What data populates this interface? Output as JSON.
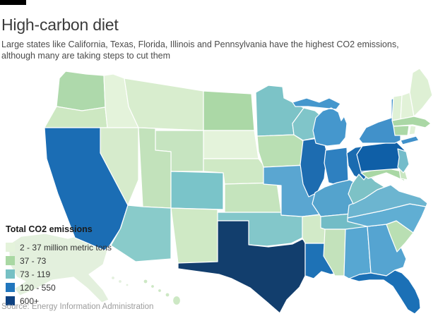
{
  "page": {
    "title": "High-carbon diet",
    "subtitle": "Large states like California, Texas, Florida, Illinois and Pennsylvania have the highest CO2 emissions, although many are taking steps to cut them",
    "source": "Source: Energy Information Administration",
    "kicker_bar_color": "#000000"
  },
  "legend": {
    "title": "Total CO2 emissions",
    "items": [
      {
        "label": "2 - 37 million metric tons",
        "color": "#e4f3db"
      },
      {
        "label": "37 - 73",
        "color": "#a9d8a3"
      },
      {
        "label": "73 - 119",
        "color": "#76c0c4"
      },
      {
        "label": "120 - 550",
        "color": "#2176bd"
      },
      {
        "label": "600+",
        "color": "#0d4181"
      }
    ]
  },
  "chart_data": {
    "type": "heatmap",
    "subtype": "us-state-choropleth",
    "title": "Total CO2 emissions",
    "unit": "million metric tons",
    "legend_position": "bottom-left",
    "buckets": [
      "2 - 37",
      "37 - 73",
      "73 - 119",
      "120 - 550",
      "600+"
    ],
    "states": [
      {
        "abbr": "WA",
        "name": "Washington",
        "bucket": "37 - 73",
        "fill": "#aed9ab"
      },
      {
        "abbr": "OR",
        "name": "Oregon",
        "bucket": "37 - 73",
        "fill": "#cde8c2"
      },
      {
        "abbr": "CA",
        "name": "California",
        "bucket": "120 - 550",
        "fill": "#1b6db4"
      },
      {
        "abbr": "NV",
        "name": "Nevada",
        "bucket": "2 - 37",
        "fill": "#d6ebcc"
      },
      {
        "abbr": "ID",
        "name": "Idaho",
        "bucket": "2 - 37",
        "fill": "#e4f3db"
      },
      {
        "abbr": "MT",
        "name": "Montana",
        "bucket": "2 - 37",
        "fill": "#d8edce"
      },
      {
        "abbr": "WY",
        "name": "Wyoming",
        "bucket": "37 - 73",
        "fill": "#c6e4c0"
      },
      {
        "abbr": "UT",
        "name": "Utah",
        "bucket": "37 - 73",
        "fill": "#c2e2bb"
      },
      {
        "abbr": "CO",
        "name": "Colorado",
        "bucket": "73 - 119",
        "fill": "#7ac4c9"
      },
      {
        "abbr": "AZ",
        "name": "Arizona",
        "bucket": "73 - 119",
        "fill": "#89cbca"
      },
      {
        "abbr": "NM",
        "name": "New Mexico",
        "bucket": "37 - 73",
        "fill": "#cfe9c5"
      },
      {
        "abbr": "ND",
        "name": "North Dakota",
        "bucket": "37 - 73",
        "fill": "#abd8a6"
      },
      {
        "abbr": "SD",
        "name": "South Dakota",
        "bucket": "2 - 37",
        "fill": "#e4f3db"
      },
      {
        "abbr": "NE",
        "name": "Nebraska",
        "bucket": "37 - 73",
        "fill": "#cfe9c5"
      },
      {
        "abbr": "KS",
        "name": "Kansas",
        "bucket": "37 - 73",
        "fill": "#c5e4bd"
      },
      {
        "abbr": "OK",
        "name": "Oklahoma",
        "bucket": "73 - 119",
        "fill": "#83c7ca"
      },
      {
        "abbr": "TX",
        "name": "Texas",
        "bucket": "600+",
        "fill": "#123e6d"
      },
      {
        "abbr": "MN",
        "name": "Minnesota",
        "bucket": "73 - 119",
        "fill": "#7cc3c7"
      },
      {
        "abbr": "IA",
        "name": "Iowa",
        "bucket": "37 - 73",
        "fill": "#b9dfb3"
      },
      {
        "abbr": "MO",
        "name": "Missouri",
        "bucket": "120 - 550",
        "fill": "#5aa6d1"
      },
      {
        "abbr": "AR",
        "name": "Arkansas",
        "bucket": "37 - 73",
        "fill": "#d2eac8"
      },
      {
        "abbr": "LA",
        "name": "Louisiana",
        "bucket": "120 - 550",
        "fill": "#1e72b6"
      },
      {
        "abbr": "WI",
        "name": "Wisconsin",
        "bucket": "73 - 119",
        "fill": "#80c5c9"
      },
      {
        "abbr": "MI",
        "name": "Michigan",
        "bucket": "120 - 550",
        "fill": "#4597cd"
      },
      {
        "abbr": "IL",
        "name": "Illinois",
        "bucket": "120 - 550",
        "fill": "#1d6cb0"
      },
      {
        "abbr": "IN",
        "name": "Indiana",
        "bucket": "120 - 550",
        "fill": "#2e80c0"
      },
      {
        "abbr": "OH",
        "name": "Ohio",
        "bucket": "120 - 550",
        "fill": "#1a6bb0"
      },
      {
        "abbr": "KY",
        "name": "Kentucky",
        "bucket": "73 - 119",
        "fill": "#54a3cd"
      },
      {
        "abbr": "TN",
        "name": "Tennessee",
        "bucket": "73 - 119",
        "fill": "#72bcc6"
      },
      {
        "abbr": "MS",
        "name": "Mississippi",
        "bucket": "37 - 73",
        "fill": "#c3e2bb"
      },
      {
        "abbr": "AL",
        "name": "Alabama",
        "bucket": "120 - 550",
        "fill": "#57a7d2"
      },
      {
        "abbr": "GA",
        "name": "Georgia",
        "bucket": "120 - 550",
        "fill": "#55a4d1"
      },
      {
        "abbr": "FL",
        "name": "Florida",
        "bucket": "120 - 550",
        "fill": "#1b70b6"
      },
      {
        "abbr": "SC",
        "name": "South Carolina",
        "bucket": "37 - 73",
        "fill": "#b9dfb3"
      },
      {
        "abbr": "NC",
        "name": "North Carolina",
        "bucket": "120 - 550",
        "fill": "#60aed3"
      },
      {
        "abbr": "VA",
        "name": "Virginia",
        "bucket": "73 - 119",
        "fill": "#6cb5d0"
      },
      {
        "abbr": "WV",
        "name": "West Virginia",
        "bucket": "73 - 119",
        "fill": "#7dc2c6"
      },
      {
        "abbr": "PA",
        "name": "Pennsylvania",
        "bucket": "120 - 550",
        "fill": "#0f5fa7"
      },
      {
        "abbr": "NY",
        "name": "New York",
        "bucket": "120 - 550",
        "fill": "#4191ca"
      },
      {
        "abbr": "NJ",
        "name": "New Jersey",
        "bucket": "73 - 119",
        "fill": "#74bcca"
      },
      {
        "abbr": "MD",
        "name": "Maryland",
        "bucket": "37 - 73",
        "fill": "#a9d7a4"
      },
      {
        "abbr": "DE",
        "name": "Delaware",
        "bucket": "2 - 37",
        "fill": "#c9e6c1"
      },
      {
        "abbr": "CT",
        "name": "Connecticut",
        "bucket": "37 - 73",
        "fill": "#abd8a6"
      },
      {
        "abbr": "RI",
        "name": "Rhode Island",
        "bucket": "2 - 37",
        "fill": "#e0f1d7"
      },
      {
        "abbr": "MA",
        "name": "Massachusetts",
        "bucket": "37 - 73",
        "fill": "#aad7a5"
      },
      {
        "abbr": "VT",
        "name": "Vermont",
        "bucket": "2 - 37",
        "fill": "#dff1d6"
      },
      {
        "abbr": "NH",
        "name": "New Hampshire",
        "bucket": "2 - 37",
        "fill": "#e2f2d8"
      },
      {
        "abbr": "ME",
        "name": "Maine",
        "bucket": "2 - 37",
        "fill": "#def0d4"
      },
      {
        "abbr": "AK",
        "name": "Alaska",
        "bucket": "2 - 37",
        "fill": "#e3f0dd"
      },
      {
        "abbr": "HI",
        "name": "Hawaii",
        "bucket": "2 - 37",
        "fill": "#cde8c4"
      }
    ]
  }
}
